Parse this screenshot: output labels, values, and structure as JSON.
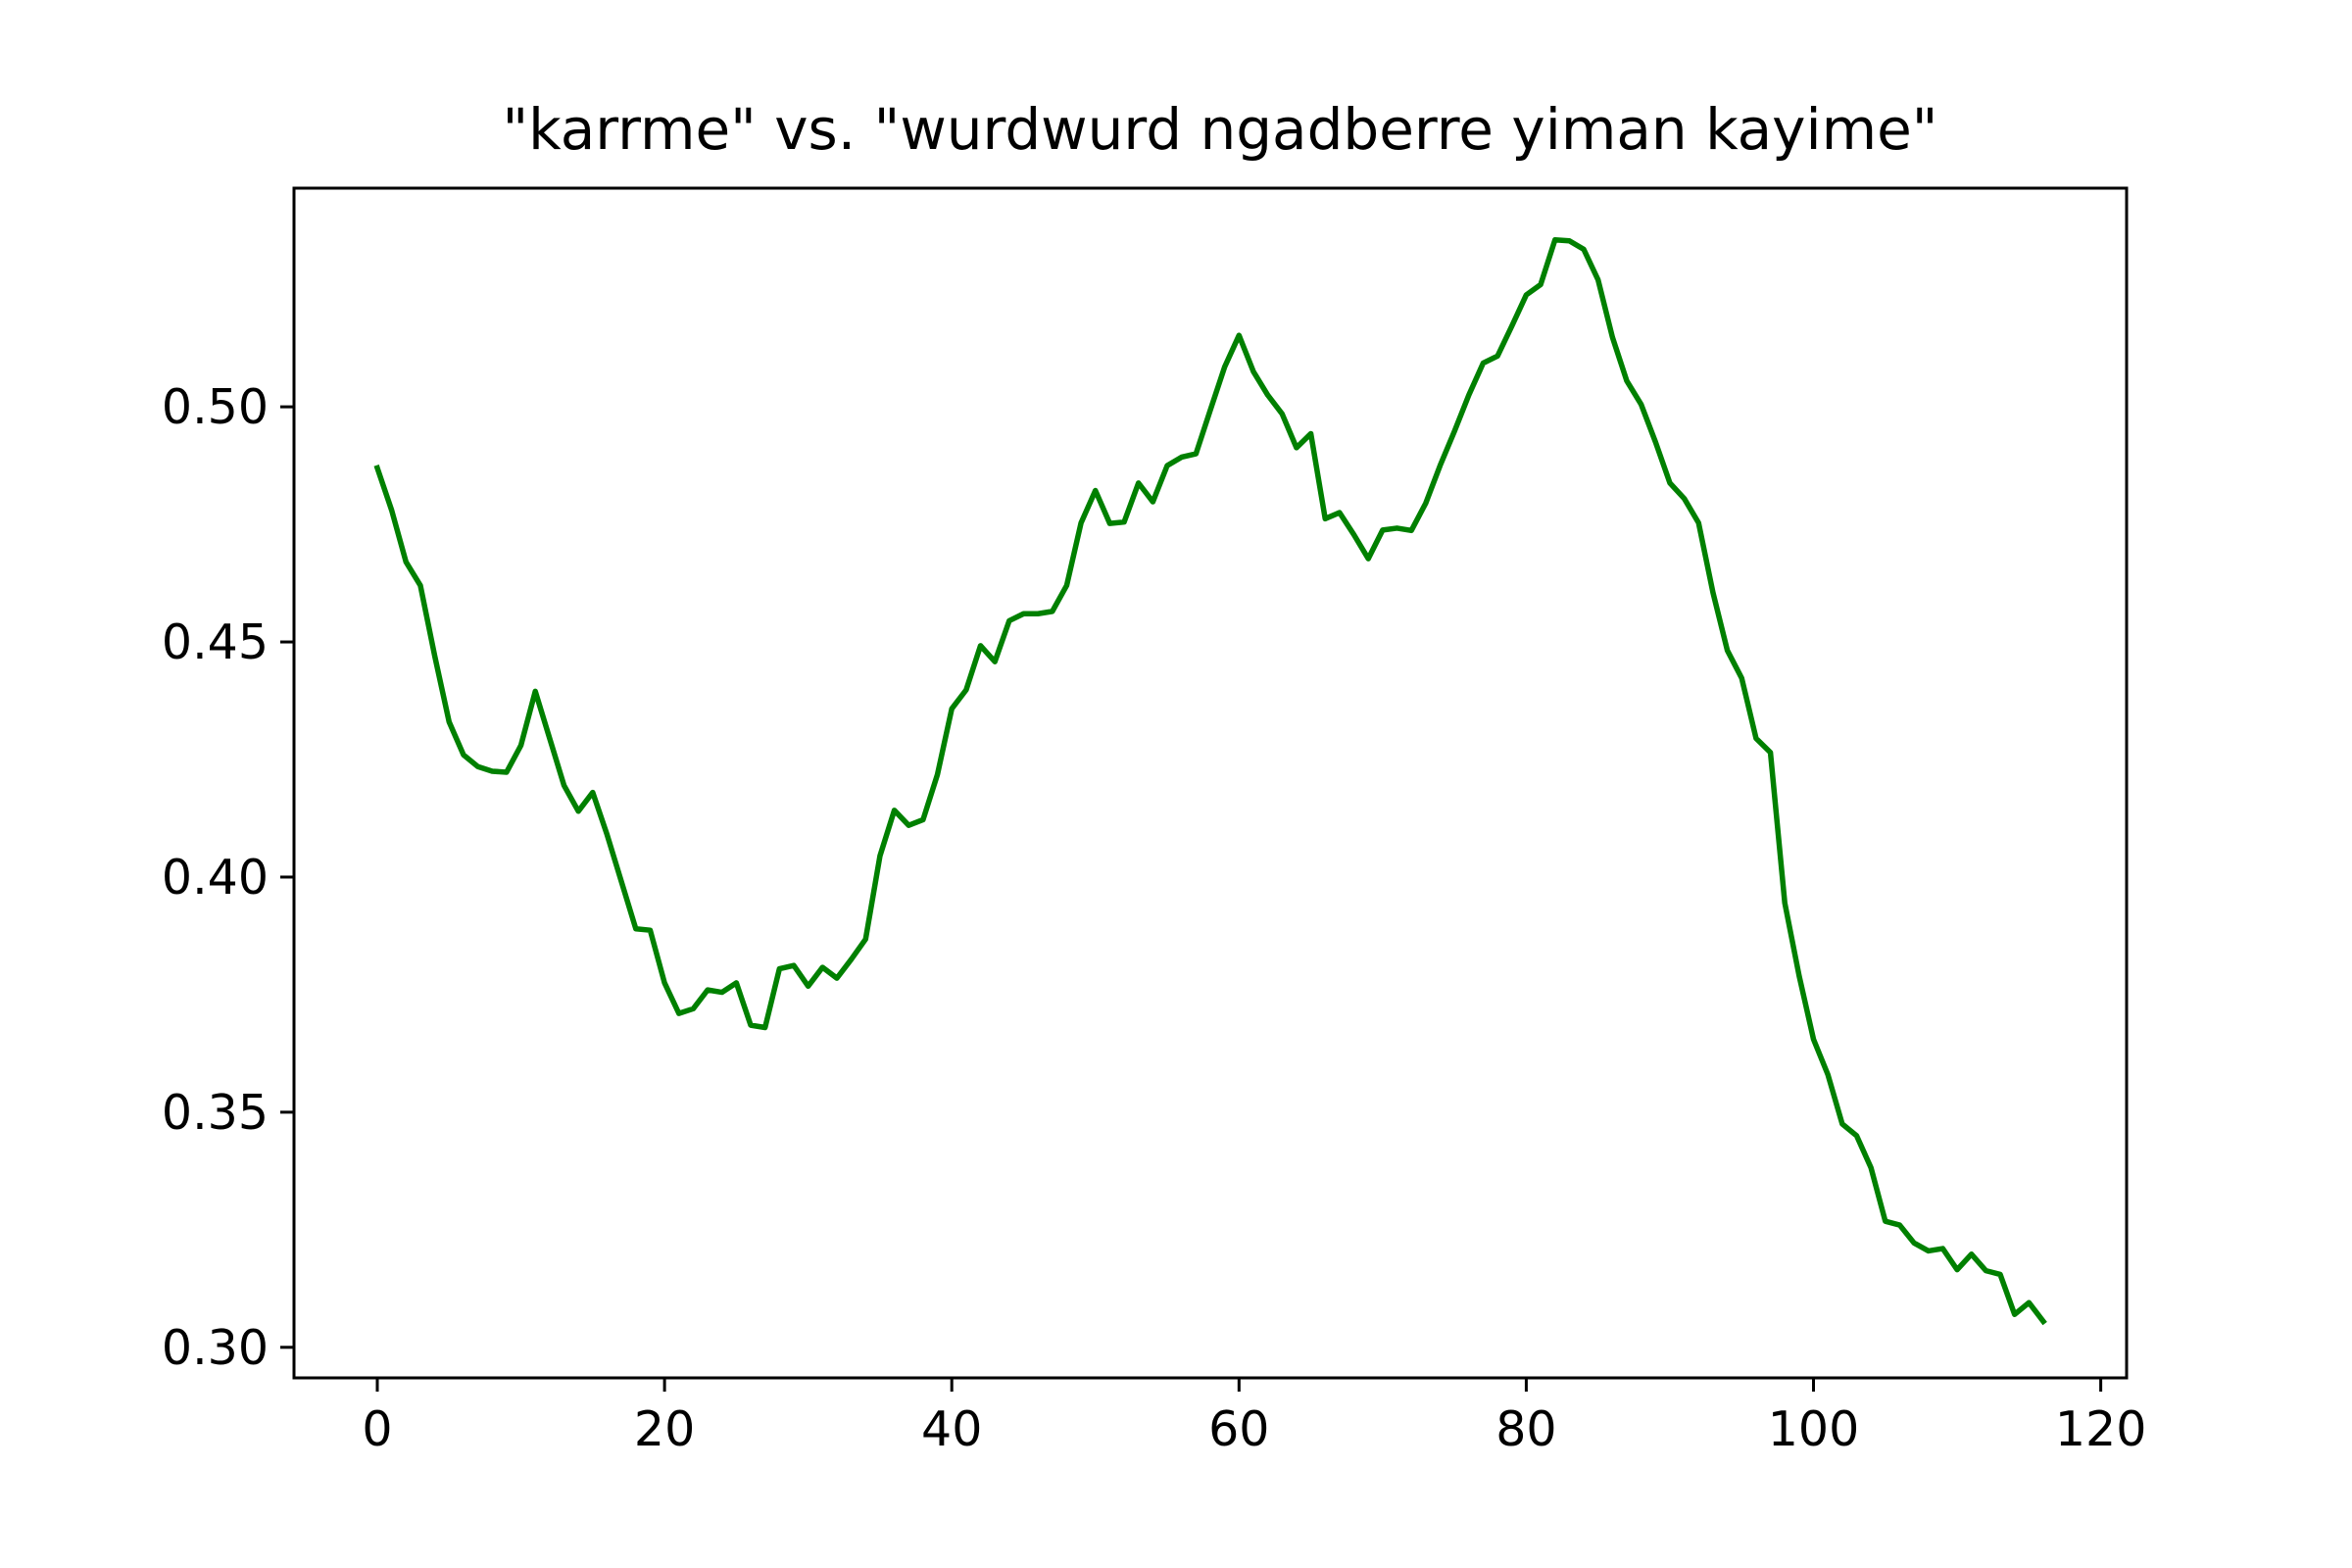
{
  "chart_data": {
    "type": "line",
    "title": "\"karrme\" vs. \"wurdwurd ngadberre yiman kayime\"",
    "xlabel": "",
    "ylabel": "",
    "xlim": [
      -5.8,
      121.8
    ],
    "ylim": [
      0.2935,
      0.5465
    ],
    "xticks": [
      0,
      20,
      40,
      60,
      80,
      100,
      120
    ],
    "xtick_labels": [
      "0",
      "20",
      "40",
      "60",
      "80",
      "100",
      "120"
    ],
    "yticks": [
      0.3,
      0.35,
      0.4,
      0.45,
      0.5
    ],
    "ytick_labels": [
      "0.30",
      "0.35",
      "0.40",
      "0.45",
      "0.50"
    ],
    "grid": false,
    "series": [
      {
        "color": "#008000",
        "x": [
          0,
          1,
          2,
          3,
          4,
          5,
          6,
          7,
          8,
          9,
          10,
          11,
          12,
          13,
          14,
          15,
          16,
          17,
          18,
          19,
          20,
          21,
          22,
          23,
          24,
          25,
          26,
          27,
          28,
          29,
          30,
          31,
          32,
          33,
          34,
          35,
          36,
          37,
          38,
          39,
          40,
          41,
          42,
          43,
          44,
          45,
          46,
          47,
          48,
          49,
          50,
          51,
          52,
          53,
          54,
          55,
          56,
          57,
          58,
          59,
          60,
          61,
          62,
          63,
          64,
          65,
          66,
          67,
          68,
          69,
          70,
          71,
          72,
          73,
          74,
          75,
          76,
          77,
          78,
          79,
          80,
          81,
          82,
          83,
          84,
          85,
          86,
          87,
          88,
          89,
          90,
          91,
          92,
          93,
          94,
          95,
          96,
          97,
          98,
          99,
          100,
          101,
          102,
          103,
          104,
          105,
          106,
          107,
          108,
          109,
          110,
          111,
          112,
          113,
          114,
          115,
          116
        ],
        "values": [
          0.487,
          0.478,
          0.467,
          0.462,
          0.447,
          0.433,
          0.426,
          0.4235,
          0.4225,
          0.4223,
          0.428,
          0.4395,
          0.4295,
          0.4195,
          0.414,
          0.418,
          0.409,
          0.399,
          0.389,
          0.3887,
          0.3775,
          0.371,
          0.372,
          0.376,
          0.3755,
          0.3775,
          0.3685,
          0.368,
          0.3805,
          0.3812,
          0.3768,
          0.3808,
          0.3785,
          0.3825,
          0.3868,
          0.4045,
          0.4142,
          0.411,
          0.4122,
          0.4218,
          0.4358,
          0.4398,
          0.4492,
          0.4458,
          0.4545,
          0.456,
          0.456,
          0.4565,
          0.462,
          0.4753,
          0.4822,
          0.4752,
          0.4755,
          0.4838,
          0.4798,
          0.4875,
          0.4893,
          0.49,
          0.4993,
          0.5085,
          0.5152,
          0.5075,
          0.5025,
          0.4985,
          0.4913,
          0.4943,
          0.4762,
          0.4775,
          0.4728,
          0.4677,
          0.4738,
          0.4742,
          0.4737,
          0.4795,
          0.4875,
          0.4948,
          0.5025,
          0.5093,
          0.5108,
          0.5172,
          0.5238,
          0.526,
          0.5355,
          0.5353,
          0.5335,
          0.527,
          0.5148,
          0.5055,
          0.5005,
          0.4925,
          0.4838,
          0.4805,
          0.4753,
          0.4605,
          0.4482,
          0.4423,
          0.4295,
          0.4265,
          0.3945,
          0.379,
          0.3655,
          0.358,
          0.3475,
          0.345,
          0.3382,
          0.3268,
          0.326,
          0.3222,
          0.3205,
          0.321,
          0.3165,
          0.3198,
          0.3163,
          0.3155,
          0.307,
          0.3095,
          0.3055
        ]
      }
    ]
  }
}
